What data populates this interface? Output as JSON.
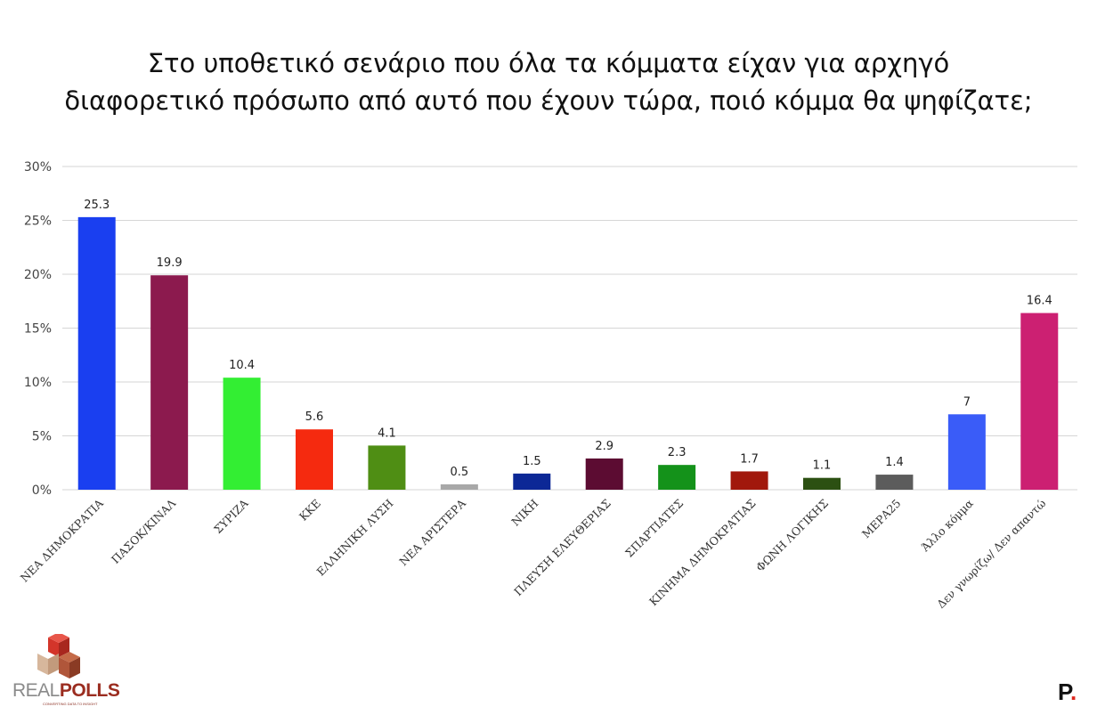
{
  "chart_data": {
    "type": "bar",
    "title_lines": [
      "Στο υποθετικό σενάριο που όλα τα κόμματα είχαν για αρχηγό",
      "διαφορετικό πρόσωπο από αυτό που έχουν τώρα, ποιό κόμμα θα ψηφίζατε;"
    ],
    "categories": [
      "ΝΕΑ ΔΗΜΟΚΡΑΤΙΑ",
      "ΠΑΣΟΚ/ΚΙΝΑΛ",
      "ΣΥΡΙΖΑ",
      "ΚΚΕ",
      "ΕΛΛΗΝΙΚΗ ΛΥΣΗ",
      "ΝΕΑ ΑΡΙΣΤΕΡΑ",
      "ΝΙΚΗ",
      "ΠΛΕΥΣΗ ΕΛΕΥΘΕΡΙΑΣ",
      "ΣΠΑΡΤΙΑΤΕΣ",
      "ΚΙΝΗΜΑ ΔΗΜΟΚΡΑΤΙΑΣ",
      "ΦΩΝΗ ΛΟΓΙΚΗΣ",
      "ΜΕΡΑ25",
      "Άλλο κόμμα",
      "Δεν γνωρίζω/ Δεν απαντώ"
    ],
    "values": [
      25.3,
      19.9,
      10.4,
      5.6,
      4.1,
      0.5,
      1.5,
      2.9,
      2.3,
      1.7,
      1.1,
      1.4,
      7,
      16.4
    ],
    "value_labels": [
      "25.3",
      "19.9",
      "10.4",
      "5.6",
      "4.1",
      "0.5",
      "1.5",
      "2.9",
      "2.3",
      "1.7",
      "1.1",
      "1.4",
      "7",
      "16.4"
    ],
    "colors": [
      "#1a3ff0",
      "#8c1a4e",
      "#33ee33",
      "#f52a0f",
      "#4f8e14",
      "#a8a8a8",
      "#0c2896",
      "#5c0c32",
      "#14921a",
      "#a1180c",
      "#2c5012",
      "#5c5c5c",
      "#3a5cf8",
      "#cc2072"
    ],
    "y_ticks": [
      "0%",
      "5%",
      "10%",
      "15%",
      "20%",
      "25%",
      "30%"
    ],
    "ylim": [
      0,
      30
    ],
    "grid": true,
    "xlabel": "",
    "ylabel": ""
  },
  "logo": {
    "text_part1": "REAL",
    "text_part2": "POLLS",
    "tagline": "CONVERTING DATA TO INSIGHT"
  },
  "brand": {
    "letter": "P",
    "dot": "."
  }
}
